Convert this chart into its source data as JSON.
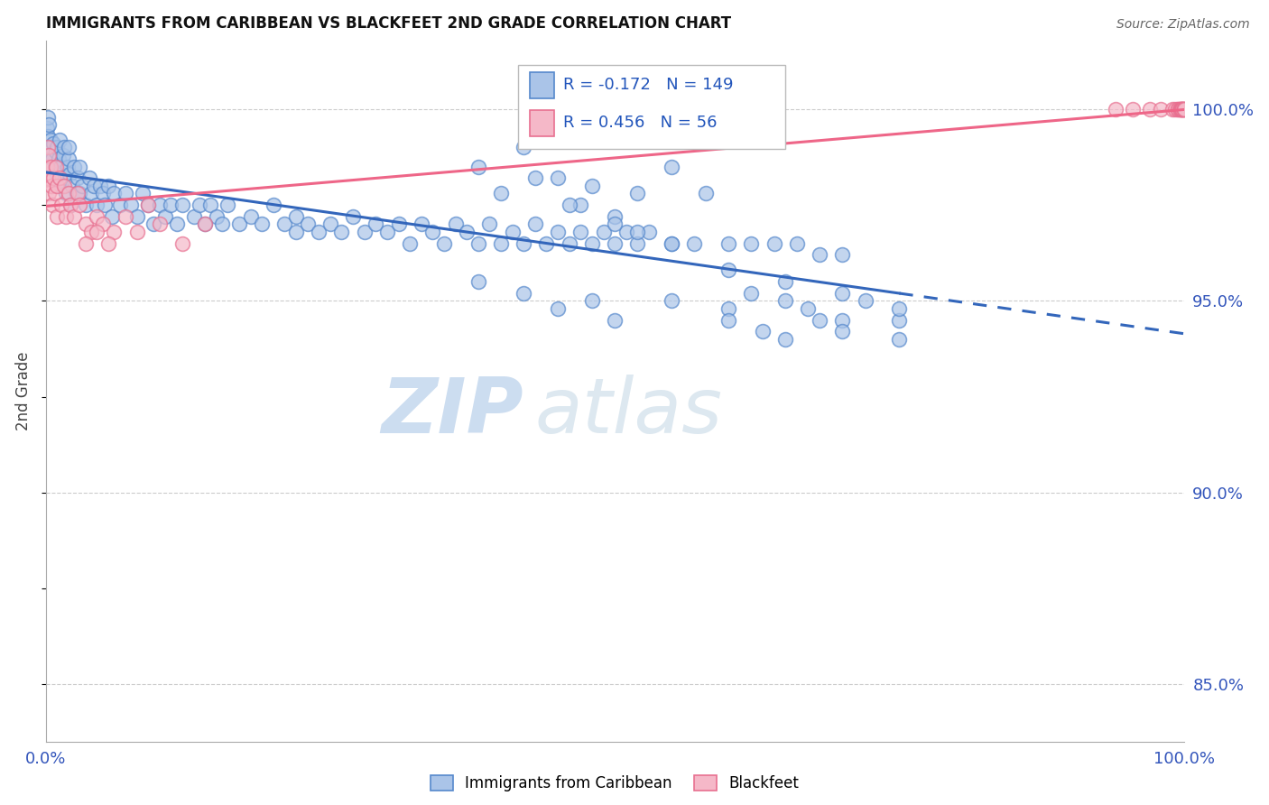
{
  "title": "IMMIGRANTS FROM CARIBBEAN VS BLACKFEET 2ND GRADE CORRELATION CHART",
  "source": "Source: ZipAtlas.com",
  "ylabel": "2nd Grade",
  "x_min": 0.0,
  "x_max": 100.0,
  "y_min": 83.5,
  "y_max": 101.8,
  "y_ticks": [
    85.0,
    90.0,
    95.0,
    100.0
  ],
  "R_blue": -0.172,
  "N_blue": 149,
  "R_pink": 0.456,
  "N_pink": 56,
  "blue_color": "#aac4e8",
  "pink_color": "#f5b8c8",
  "blue_edge_color": "#5588cc",
  "pink_edge_color": "#e87090",
  "blue_line_color": "#3366bb",
  "pink_line_color": "#ee6688",
  "legend_blue": "Immigrants from Caribbean",
  "legend_pink": "Blackfeet",
  "watermark_zip": "ZIP",
  "watermark_atlas": "atlas",
  "blue_x_line_end": 75.0,
  "blue_scatter_x": [
    0.1,
    0.15,
    0.2,
    0.25,
    0.3,
    0.35,
    0.4,
    0.5,
    0.6,
    0.7,
    0.8,
    0.9,
    1.0,
    1.0,
    1.1,
    1.2,
    1.3,
    1.4,
    1.5,
    1.6,
    1.7,
    1.8,
    1.9,
    2.0,
    2.0,
    2.1,
    2.2,
    2.3,
    2.5,
    2.7,
    2.8,
    3.0,
    3.0,
    3.2,
    3.5,
    3.8,
    4.0,
    4.2,
    4.5,
    4.8,
    5.0,
    5.2,
    5.5,
    5.8,
    6.0,
    6.5,
    7.0,
    7.5,
    8.0,
    8.5,
    9.0,
    9.5,
    10.0,
    10.5,
    11.0,
    11.5,
    12.0,
    13.0,
    13.5,
    14.0,
    14.5,
    15.0,
    15.5,
    16.0,
    17.0,
    18.0,
    19.0,
    20.0,
    21.0,
    22.0,
    22.0,
    23.0,
    24.0,
    25.0,
    26.0,
    27.0,
    28.0,
    29.0,
    30.0,
    31.0,
    32.0,
    33.0,
    34.0,
    35.0,
    36.0,
    37.0,
    38.0,
    39.0,
    40.0,
    41.0,
    42.0,
    43.0,
    44.0,
    45.0,
    46.0,
    47.0,
    48.0,
    49.0,
    50.0,
    51.0,
    52.0,
    53.0,
    55.0,
    57.0,
    60.0,
    62.0,
    64.0,
    66.0,
    68.0,
    70.0,
    55.0,
    58.0,
    42.0,
    45.0,
    47.0,
    48.0,
    50.0,
    52.0,
    38.0,
    40.0,
    43.0,
    46.0,
    50.0,
    52.0,
    55.0,
    60.0,
    65.0,
    70.0,
    75.0,
    38.0,
    42.0,
    45.0,
    48.0,
    50.0,
    55.0,
    60.0,
    62.0,
    65.0,
    67.0,
    70.0,
    72.0,
    75.0,
    60.0,
    63.0,
    65.0,
    68.0,
    70.0,
    75.0
  ],
  "blue_scatter_y": [
    99.5,
    99.3,
    99.8,
    99.0,
    99.6,
    98.8,
    99.2,
    99.0,
    98.7,
    99.1,
    98.5,
    98.9,
    99.0,
    98.3,
    98.7,
    99.2,
    98.5,
    98.0,
    98.8,
    99.0,
    98.2,
    97.8,
    98.5,
    98.7,
    99.0,
    98.3,
    97.5,
    98.0,
    98.5,
    97.8,
    98.2,
    98.5,
    97.8,
    98.0,
    97.5,
    98.2,
    97.8,
    98.0,
    97.5,
    98.0,
    97.8,
    97.5,
    98.0,
    97.2,
    97.8,
    97.5,
    97.8,
    97.5,
    97.2,
    97.8,
    97.5,
    97.0,
    97.5,
    97.2,
    97.5,
    97.0,
    97.5,
    97.2,
    97.5,
    97.0,
    97.5,
    97.2,
    97.0,
    97.5,
    97.0,
    97.2,
    97.0,
    97.5,
    97.0,
    97.2,
    96.8,
    97.0,
    96.8,
    97.0,
    96.8,
    97.2,
    96.8,
    97.0,
    96.8,
    97.0,
    96.5,
    97.0,
    96.8,
    96.5,
    97.0,
    96.8,
    96.5,
    97.0,
    96.5,
    96.8,
    96.5,
    97.0,
    96.5,
    96.8,
    96.5,
    96.8,
    96.5,
    96.8,
    96.5,
    96.8,
    96.5,
    96.8,
    96.5,
    96.5,
    96.5,
    96.5,
    96.5,
    96.5,
    96.2,
    96.2,
    98.5,
    97.8,
    99.0,
    98.2,
    97.5,
    98.0,
    97.2,
    97.8,
    98.5,
    97.8,
    98.2,
    97.5,
    97.0,
    96.8,
    96.5,
    95.8,
    95.5,
    95.2,
    94.5,
    95.5,
    95.2,
    94.8,
    95.0,
    94.5,
    95.0,
    94.8,
    95.2,
    95.0,
    94.8,
    94.5,
    95.0,
    94.8,
    94.5,
    94.2,
    94.0,
    94.5,
    94.2,
    94.0
  ],
  "pink_scatter_x": [
    0.1,
    0.15,
    0.2,
    0.25,
    0.3,
    0.4,
    0.5,
    0.6,
    0.7,
    0.8,
    0.9,
    1.0,
    1.0,
    1.2,
    1.4,
    1.6,
    1.8,
    2.0,
    2.2,
    2.5,
    2.8,
    3.0,
    3.5,
    4.0,
    4.5,
    5.0,
    6.0,
    7.0,
    8.0,
    9.0,
    10.0,
    12.0,
    14.0,
    3.5,
    4.5,
    5.5,
    94.0,
    95.5,
    97.0,
    98.0,
    99.0,
    99.2,
    99.5,
    99.5,
    99.6,
    99.7,
    99.7,
    99.8,
    99.8,
    99.9,
    99.9,
    99.9,
    100.0,
    100.0,
    100.0,
    100.0
  ],
  "pink_scatter_y": [
    98.5,
    99.0,
    98.2,
    98.8,
    97.8,
    98.5,
    98.0,
    97.5,
    98.2,
    97.8,
    98.5,
    98.0,
    97.2,
    98.2,
    97.5,
    98.0,
    97.2,
    97.8,
    97.5,
    97.2,
    97.8,
    97.5,
    97.0,
    96.8,
    97.2,
    97.0,
    96.8,
    97.2,
    96.8,
    97.5,
    97.0,
    96.5,
    97.0,
    96.5,
    96.8,
    96.5,
    100.0,
    100.0,
    100.0,
    100.0,
    100.0,
    100.0,
    100.0,
    100.0,
    100.0,
    100.0,
    100.0,
    100.0,
    100.0,
    100.0,
    100.0,
    100.0,
    100.0,
    100.0,
    100.0,
    100.0
  ]
}
